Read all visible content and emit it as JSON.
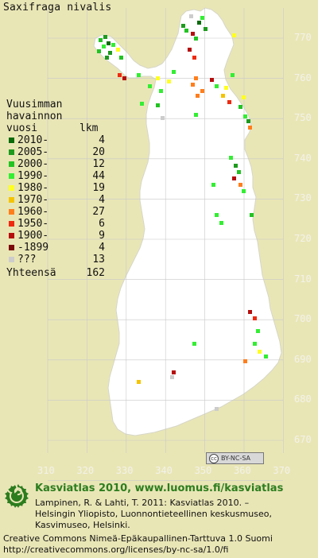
{
  "title": "Saxifraga nivalis",
  "legend": {
    "heading": [
      "Vuusimman",
      "havainnon",
      "vuosi"
    ],
    "count_heading": "lkm",
    "rows": [
      {
        "label": "2010-",
        "count": "4",
        "color": "#0a6b0a"
      },
      {
        "label": "2005-",
        "count": "20",
        "color": "#1e9a1e"
      },
      {
        "label": "2000-",
        "count": "12",
        "color": "#22c322"
      },
      {
        "label": "1990-",
        "count": "44",
        "color": "#33ee33"
      },
      {
        "label": "1980-",
        "count": "19",
        "color": "#ffff22"
      },
      {
        "label": "1970-",
        "count": "4",
        "color": "#f5c400"
      },
      {
        "label": "1960-",
        "count": "27",
        "color": "#ff7e1c"
      },
      {
        "label": "1950-",
        "count": "6",
        "color": "#ee2a10"
      },
      {
        "label": "1900-",
        "count": "9",
        "color": "#b50e0e"
      },
      {
        "label": "-1899",
        "count": "4",
        "color": "#7a0a0a"
      },
      {
        "label": "???",
        "count": "13",
        "color": "#cccccc"
      }
    ],
    "total_label": "Yhteensä",
    "total_count": "162"
  },
  "y_axis_labels": [
    "770",
    "760",
    "750",
    "740",
    "730",
    "720",
    "710",
    "700",
    "690",
    "680",
    "670"
  ],
  "x_axis_labels": [
    "310",
    "320",
    "330",
    "340",
    "350",
    "360",
    "370"
  ],
  "license_badge": {
    "icon": "cc",
    "text": "BY-NC-SA"
  },
  "credit": {
    "title": "Kasviatlas 2010, www.luomus.fi/kasviatlas",
    "lines": [
      "Lampinen, R. & Lahti, T. 2011: Kasviatlas 2010. –",
      "Helsingin Yliopisto, Luonnontieteellinen keskusmuseo,",
      "Kasvimuseo, Helsinki."
    ]
  },
  "license": [
    "Creative Commons Nimeä-Epäkaupallinen-Tarttuva 1.0 Suomi",
    "http://creativecommons.org/licenses/by-nc-sa/1.0/fi"
  ],
  "logo_icon": "spiral-leaf-logo",
  "colors": {
    "background": "#e9e6b6",
    "land": "#ffffff",
    "grid": "#c8c8c8",
    "credit_green": "#2c7d1e"
  }
}
